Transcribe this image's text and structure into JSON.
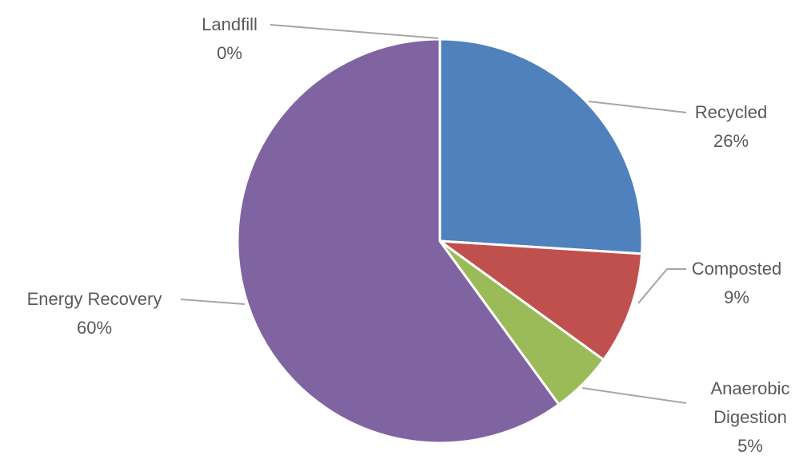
{
  "chart_data": {
    "type": "pie",
    "title": "",
    "start_angle_deg": 0,
    "direction": "clockwise",
    "slices": [
      {
        "name": "Recycled",
        "label": "Recycled",
        "value": 26,
        "value_label": "26%",
        "color": "#4f81bd"
      },
      {
        "name": "Composted",
        "label": "Composted",
        "value": 9,
        "value_label": "9%",
        "color": "#c0504d"
      },
      {
        "name": "Anaerobic Digestion",
        "label": "Anaerobic\nDigestion",
        "value": 5,
        "value_label": "5%",
        "color": "#9bbb59"
      },
      {
        "name": "Energy Recovery",
        "label": "Energy Recovery",
        "value": 60,
        "value_label": "60%",
        "color": "#8064a2"
      },
      {
        "name": "Landfill",
        "label": "Landfill",
        "value": 0,
        "value_label": "0%",
        "color": "#4bacc6"
      }
    ],
    "legend": "none",
    "data_labels": "outside-with-leader-lines"
  }
}
